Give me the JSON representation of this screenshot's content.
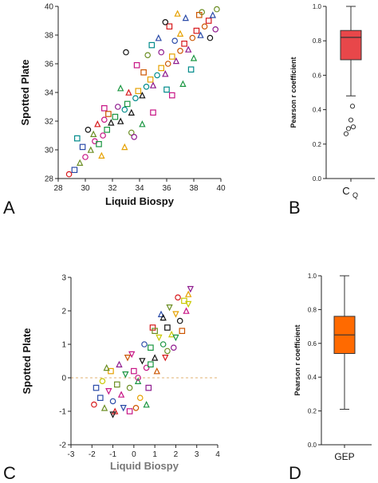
{
  "panel_letters": [
    "A",
    "B",
    "C",
    "D"
  ],
  "chart_data": [
    {
      "panel": "A",
      "type": "scatter",
      "xlabel": "Liquid Biospy",
      "ylabel": "Spotted Plate",
      "xlim": [
        28,
        40
      ],
      "ylim": [
        28,
        40
      ],
      "xticks": [
        "28",
        "30",
        "32",
        "34",
        "36",
        "38",
        "40"
      ],
      "yticks": [
        "28",
        "30",
        "32",
        "34",
        "36",
        "38",
        "40"
      ],
      "markers": [
        "circle",
        "square",
        "triangle"
      ],
      "colors": [
        "#d7191c",
        "#e6a100",
        "#1a9641",
        "#2b4ba8",
        "#8e1a8e",
        "#111111",
        "#6b8e23",
        "#cc5500",
        "#008b8b",
        "#c71585"
      ],
      "points": [
        [
          28.8,
          28.3
        ],
        [
          29.2,
          28.6
        ],
        [
          29.6,
          29.1
        ],
        [
          30.0,
          29.5
        ],
        [
          29.8,
          30.2
        ],
        [
          30.4,
          30.0
        ],
        [
          30.7,
          30.6
        ],
        [
          31.0,
          30.4
        ],
        [
          30.6,
          31.1
        ],
        [
          31.3,
          31.0
        ],
        [
          31.6,
          31.4
        ],
        [
          31.9,
          31.9
        ],
        [
          31.4,
          32.1
        ],
        [
          32.2,
          32.3
        ],
        [
          32.6,
          32.0
        ],
        [
          32.9,
          32.8
        ],
        [
          33.1,
          33.2
        ],
        [
          33.4,
          32.6
        ],
        [
          33.7,
          33.6
        ],
        [
          33.9,
          34.1
        ],
        [
          34.2,
          33.8
        ],
        [
          34.5,
          34.4
        ],
        [
          34.8,
          34.9
        ],
        [
          35.0,
          34.5
        ],
        [
          35.3,
          35.2
        ],
        [
          35.6,
          35.7
        ],
        [
          35.9,
          35.3
        ],
        [
          36.1,
          36.0
        ],
        [
          36.4,
          36.5
        ],
        [
          36.7,
          36.2
        ],
        [
          37.0,
          36.9
        ],
        [
          37.3,
          37.4
        ],
        [
          37.6,
          37.0
        ],
        [
          37.9,
          37.8
        ],
        [
          38.2,
          38.3
        ],
        [
          38.5,
          38.0
        ],
        [
          38.8,
          38.6
        ],
        [
          39.1,
          39.0
        ],
        [
          39.4,
          39.4
        ],
        [
          39.7,
          39.8
        ],
        [
          36.2,
          38.6
        ],
        [
          35.4,
          37.8
        ],
        [
          34.6,
          36.6
        ],
        [
          33.8,
          35.9
        ],
        [
          37.4,
          39.2
        ],
        [
          38.6,
          39.6
        ],
        [
          35.0,
          32.6
        ],
        [
          34.2,
          31.8
        ],
        [
          33.4,
          31.2
        ],
        [
          36.4,
          33.8
        ],
        [
          37.2,
          34.6
        ],
        [
          33.0,
          36.8
        ],
        [
          31.4,
          32.9
        ],
        [
          32.6,
          34.3
        ],
        [
          30.2,
          31.4
        ],
        [
          29.4,
          30.8
        ],
        [
          38.0,
          36.4
        ],
        [
          39.2,
          37.8
        ],
        [
          37.8,
          35.6
        ],
        [
          32.9,
          30.2
        ],
        [
          35.9,
          38.9
        ],
        [
          34.9,
          37.3
        ],
        [
          36.8,
          39.5
        ],
        [
          33.6,
          30.9
        ],
        [
          36.0,
          34.2
        ],
        [
          31.2,
          29.6
        ],
        [
          39.6,
          38.4
        ],
        [
          38.4,
          39.4
        ],
        [
          37.0,
          38.1
        ],
        [
          35.6,
          36.8
        ],
        [
          34.3,
          35.4
        ],
        [
          33.2,
          34.0
        ],
        [
          32.4,
          33.0
        ],
        [
          31.7,
          32.5
        ],
        [
          30.9,
          31.8
        ],
        [
          36.6,
          37.6
        ]
      ]
    },
    {
      "panel": "B",
      "type": "box",
      "ylabel": "Pearson r coefficient",
      "category": "CQ",
      "ylim": [
        0.0,
        1.0
      ],
      "yticks": [
        "0.0",
        "0.2",
        "0.4",
        "0.6",
        "0.8",
        "1.0"
      ],
      "box": {
        "min": 0.48,
        "q1": 0.69,
        "median": 0.82,
        "q3": 0.86,
        "max": 1.0
      },
      "outliers": [
        0.42,
        0.34,
        0.3,
        0.29,
        0.26
      ],
      "box_color": "#e8474a"
    },
    {
      "panel": "C",
      "type": "scatter",
      "xlabel": "Liquid Biospy",
      "ylabel": "Spotted Plate",
      "xlim": [
        -3,
        4
      ],
      "ylim": [
        -2,
        3
      ],
      "xticks": [
        "-3",
        "-2",
        "-1",
        "0",
        "1",
        "2",
        "3",
        "4"
      ],
      "yticks": [
        "-2",
        "-1",
        "0",
        "1",
        "2",
        "3"
      ],
      "reference_line_y": 0,
      "markers": [
        "circle",
        "square",
        "triangle",
        "triangle-down"
      ],
      "colors": [
        "#d7191c",
        "#e6a100",
        "#1a9641",
        "#2b4ba8",
        "#8e1a8e",
        "#111111",
        "#6b8e23",
        "#cc5500",
        "#c8c800",
        "#c71585"
      ],
      "points": [
        [
          -1.9,
          -0.8
        ],
        [
          -1.6,
          -0.6
        ],
        [
          -1.4,
          -0.9
        ],
        [
          -1.2,
          -0.4
        ],
        [
          -1.0,
          -0.7
        ],
        [
          -0.8,
          -0.2
        ],
        [
          -0.6,
          -0.5
        ],
        [
          -0.4,
          0.1
        ],
        [
          -0.2,
          -0.3
        ],
        [
          0.0,
          0.2
        ],
        [
          0.2,
          -0.1
        ],
        [
          0.4,
          0.5
        ],
        [
          0.6,
          0.3
        ],
        [
          0.8,
          0.9
        ],
        [
          1.0,
          0.6
        ],
        [
          1.2,
          1.2
        ],
        [
          1.4,
          1.0
        ],
        [
          1.6,
          1.5
        ],
        [
          1.8,
          1.3
        ],
        [
          2.0,
          1.9
        ],
        [
          2.2,
          1.7
        ],
        [
          2.4,
          2.3
        ],
        [
          2.6,
          2.5
        ],
        [
          2.7,
          2.65
        ],
        [
          -1.5,
          -0.1
        ],
        [
          -1.1,
          0.2
        ],
        [
          -0.7,
          0.4
        ],
        [
          -0.3,
          0.6
        ],
        [
          0.3,
          -0.6
        ],
        [
          0.7,
          -0.3
        ],
        [
          1.1,
          0.2
        ],
        [
          1.5,
          0.6
        ],
        [
          1.9,
          0.9
        ],
        [
          2.3,
          1.4
        ],
        [
          -0.9,
          -1.0
        ],
        [
          -0.5,
          -0.9
        ],
        [
          0.1,
          -0.9
        ],
        [
          0.9,
          1.5
        ],
        [
          1.3,
          1.9
        ],
        [
          1.7,
          2.1
        ],
        [
          2.1,
          2.4
        ],
        [
          -1.8,
          -0.3
        ],
        [
          -1.3,
          0.3
        ],
        [
          -0.1,
          0.7
        ],
        [
          0.5,
          1.0
        ],
        [
          1.0,
          1.4
        ],
        [
          2.5,
          2.0
        ],
        [
          2.0,
          1.2
        ],
        [
          1.6,
          0.8
        ],
        [
          -0.2,
          -1.0
        ],
        [
          0.6,
          -0.8
        ],
        [
          -1.0,
          -1.1
        ],
        [
          0.2,
          0.0
        ],
        [
          0.8,
          0.4
        ],
        [
          1.4,
          1.8
        ],
        [
          2.6,
          2.2
        ]
      ]
    },
    {
      "panel": "D",
      "type": "box",
      "ylabel": "Pearson r coefficient",
      "category": "GEP",
      "ylim": [
        0.0,
        1.0
      ],
      "yticks": [
        "0.0",
        "0.2",
        "0.4",
        "0.6",
        "0.8",
        "1.0"
      ],
      "box": {
        "min": 0.21,
        "q1": 0.54,
        "median": 0.65,
        "q3": 0.76,
        "max": 1.0
      },
      "outliers": [],
      "box_color": "#ff6a00"
    }
  ]
}
